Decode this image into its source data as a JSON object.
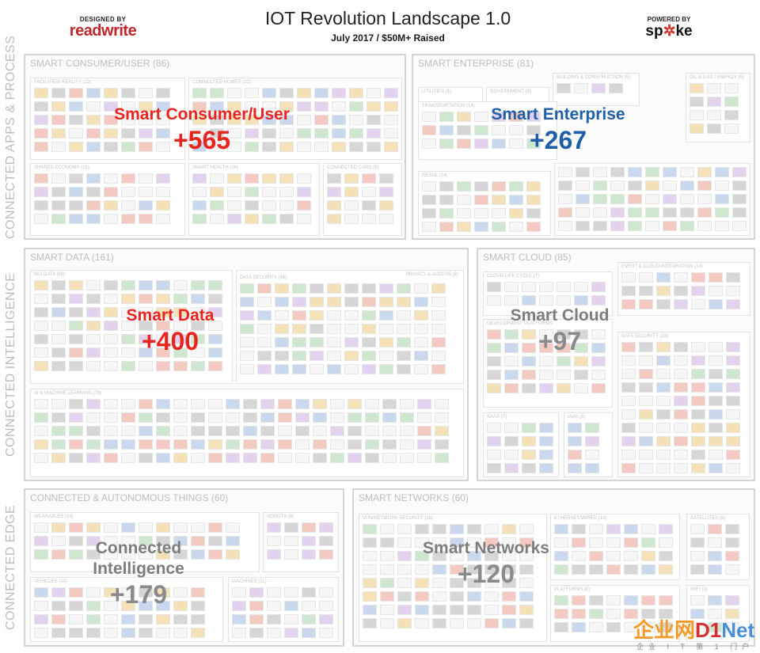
{
  "header": {
    "designed_by": "DESIGNED BY",
    "left_logo": "readwrite",
    "title": "IOT Revolution Landscape 1.0",
    "subtitle": "July 2017 / $50M+ Raised",
    "powered_by": "POWERED BY",
    "right_logo_a": "sp",
    "right_logo_b": "ke"
  },
  "side_labels": {
    "top": "CONNECTED APPS & PROCESS",
    "middle": "CONNECTED INTELLIGENCE",
    "bottom": "CONNECTED EDGE"
  },
  "panels": {
    "consumer": {
      "head": "SMART CONSUMER/USER (86)",
      "name": "Smart Consumer/User",
      "count": "+565"
    },
    "enterprise": {
      "head": "SMART ENTERPRISE (81)",
      "name": "Smart Enterprise",
      "count": "+267"
    },
    "data": {
      "head": "SMART DATA (161)",
      "name": "Smart Data",
      "count": "+400"
    },
    "cloud": {
      "head": "SMART CLOUD (85)",
      "name": "Smart Cloud",
      "count": "+97"
    },
    "things": {
      "head": "CONNECTED & AUTONOMOUS THINGS (60)",
      "name_line1": "Connected",
      "name_line2": "Intelligence",
      "count": "+179"
    },
    "networks": {
      "head": "SMART NETWORKS (60)",
      "name": "Smart Networks",
      "count": "+120"
    }
  },
  "subsections": {
    "fashion": "FACILITIES/ REALITY (23)",
    "connected_homes": "CONNECTED HOMES (23)",
    "shared_economy": "SHARED ECONOMY (15)",
    "smart_health": "SMART HEALTH (16)",
    "connected_cars": "CONNECTED CARS (9)",
    "utilities": "UTILITIES (5)",
    "government": "GOVERNMENT (6)",
    "building": "BUILDING & CONSTRUCTION (5)",
    "oil_gas": "OIL & GAS / ENERGY (5)",
    "transportation": "TRANSPORTATION (14)",
    "retail": "RETAIL (14)",
    "big_data": "BIG DATA (60)",
    "privacy": "PRIVACY & ACCESS (6)",
    "data_security": "DATA SECURITY (46)",
    "ai_ml": "AI & MACHINE LEARNING (78)",
    "cloud_lifecycle": "CLOUD LIFE CYCLE (7)",
    "event_cloud": "EVENT & CLOUD INTEGRATION (14)",
    "dev_platforms": "DEVELOPMENT PLATFORMS",
    "cloud_security": "DATA SECURITY (23)",
    "saas": "SAAS (7)",
    "iaas": "IAAS (6)",
    "wearables": "WEARABLES (24)",
    "robots": "ROBOTS (8)",
    "vehicles": "VEHICLES (10)",
    "machines": "MACHINES (11)",
    "vpn": "VPN/NETWORK SECURITY (18)",
    "ethernet": "ETHERNET/WIRED (14)",
    "satellites": "SATELLITES (5)",
    "platforms": "PLATFORMS (8)",
    "wifi": "WIFI (3)"
  },
  "watermark": {
    "part_a": "企业网",
    "part_b": "D1",
    "part_c": "Net",
    "tagline": "企业 I T 第 1 门户"
  }
}
